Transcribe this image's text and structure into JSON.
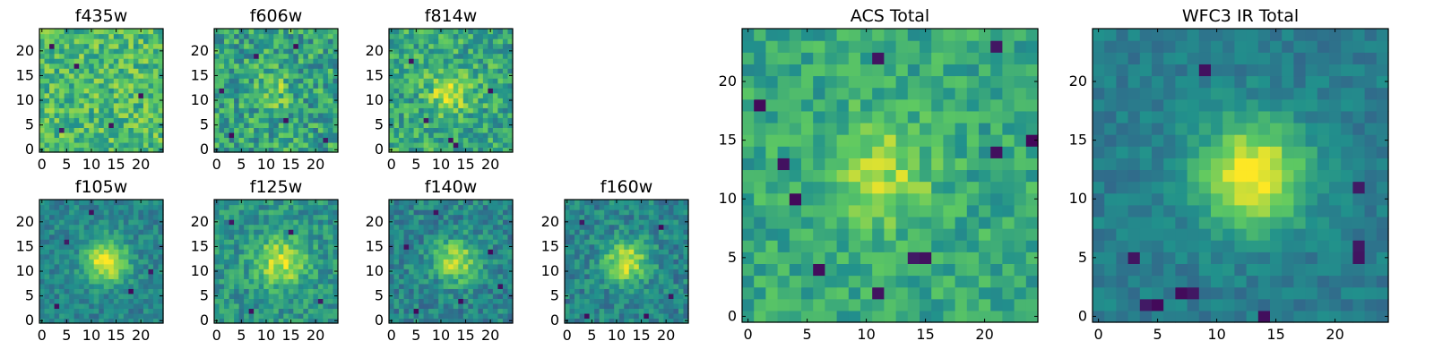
{
  "figure": {
    "colormap": "viridis",
    "colors": {
      "low": "#440154",
      "mid": "#21918c",
      "high": "#fde725",
      "frame": "#000000"
    }
  },
  "chart_data": [
    {
      "type": "heatmap",
      "id": "f435w",
      "title": "f435w",
      "grid_size": 25,
      "xticks": [
        "0",
        "5",
        "10",
        "15",
        "20"
      ],
      "yticks": [
        "0",
        "5",
        "10",
        "15",
        "20"
      ],
      "xlim": [
        0,
        25
      ],
      "ylim": [
        0,
        25
      ],
      "source": {
        "amplitude": 0.0,
        "center": [
          12,
          12
        ],
        "sigma": 3.0
      },
      "background": {
        "level": 0.68,
        "noise": 0.2
      },
      "dark_pixels": [
        [
          4,
          4
        ],
        [
          14,
          5
        ],
        [
          20,
          11
        ],
        [
          7,
          17
        ],
        [
          2,
          21
        ]
      ]
    },
    {
      "type": "heatmap",
      "id": "f606w",
      "title": "f606w",
      "grid_size": 25,
      "xticks": [
        "0",
        "5",
        "10",
        "15",
        "20"
      ],
      "yticks": [
        "0",
        "5",
        "10",
        "15",
        "20"
      ],
      "xlim": [
        0,
        25
      ],
      "ylim": [
        0,
        25
      ],
      "source": {
        "amplitude": 0.22,
        "center": [
          11,
          12
        ],
        "sigma": 2.5
      },
      "background": {
        "level": 0.58,
        "noise": 0.22
      },
      "dark_pixels": [
        [
          3,
          3
        ],
        [
          14,
          6
        ],
        [
          22,
          2
        ],
        [
          8,
          19
        ],
        [
          16,
          21
        ],
        [
          1,
          12
        ]
      ]
    },
    {
      "type": "heatmap",
      "id": "f814w",
      "title": "f814w",
      "grid_size": 25,
      "xticks": [
        "0",
        "5",
        "10",
        "15",
        "20"
      ],
      "yticks": [
        "0",
        "5",
        "10",
        "15",
        "20"
      ],
      "xlim": [
        0,
        25
      ],
      "ylim": [
        0,
        25
      ],
      "source": {
        "amplitude": 0.3,
        "center": [
          12,
          12
        ],
        "sigma": 3.0
      },
      "background": {
        "level": 0.6,
        "noise": 0.2
      },
      "dark_pixels": [
        [
          12,
          2
        ],
        [
          13,
          1
        ],
        [
          4,
          18
        ],
        [
          20,
          12
        ],
        [
          7,
          6
        ]
      ]
    },
    {
      "type": "heatmap",
      "id": "f105w",
      "title": "f105w",
      "grid_size": 25,
      "xticks": [
        "0",
        "5",
        "10",
        "15",
        "20"
      ],
      "yticks": [
        "0",
        "5",
        "10",
        "15",
        "20"
      ],
      "xlim": [
        0,
        25
      ],
      "ylim": [
        0,
        25
      ],
      "source": {
        "amplitude": 0.55,
        "center": [
          13,
          12
        ],
        "sigma": 3.0
      },
      "background": {
        "level": 0.45,
        "noise": 0.12
      },
      "dark_pixels": [
        [
          10,
          22
        ],
        [
          3,
          3
        ],
        [
          18,
          6
        ],
        [
          22,
          10
        ],
        [
          5,
          16
        ]
      ]
    },
    {
      "type": "heatmap",
      "id": "f125w",
      "title": "f125w",
      "grid_size": 25,
      "xticks": [
        "0",
        "5",
        "10",
        "15",
        "20"
      ],
      "yticks": [
        "0",
        "5",
        "10",
        "15",
        "20"
      ],
      "xlim": [
        0,
        25
      ],
      "ylim": [
        0,
        25
      ],
      "source": {
        "amplitude": 0.4,
        "center": [
          13,
          12
        ],
        "sigma": 3.5
      },
      "background": {
        "level": 0.52,
        "noise": 0.15
      },
      "dark_pixels": [
        [
          21,
          4
        ],
        [
          3,
          20
        ],
        [
          15,
          18
        ],
        [
          7,
          2
        ]
      ]
    },
    {
      "type": "heatmap",
      "id": "f140w",
      "title": "f140w",
      "grid_size": 25,
      "xticks": [
        "0",
        "5",
        "10",
        "15",
        "20"
      ],
      "yticks": [
        "0",
        "5",
        "10",
        "15",
        "20"
      ],
      "xlim": [
        0,
        25
      ],
      "ylim": [
        0,
        25
      ],
      "source": {
        "amplitude": 0.45,
        "center": [
          13,
          12
        ],
        "sigma": 3.0
      },
      "background": {
        "level": 0.45,
        "noise": 0.15
      },
      "dark_pixels": [
        [
          3,
          15
        ],
        [
          20,
          14
        ],
        [
          5,
          2
        ],
        [
          14,
          4
        ],
        [
          22,
          7
        ],
        [
          9,
          22
        ]
      ]
    },
    {
      "type": "heatmap",
      "id": "f160w",
      "title": "f160w",
      "grid_size": 25,
      "xticks": [
        "0",
        "5",
        "10",
        "15",
        "20"
      ],
      "yticks": [
        "0",
        "5",
        "10",
        "15",
        "20"
      ],
      "xlim": [
        0,
        25
      ],
      "ylim": [
        0,
        25
      ],
      "source": {
        "amplitude": 0.5,
        "center": [
          12,
          12
        ],
        "sigma": 3.0
      },
      "background": {
        "level": 0.45,
        "noise": 0.14
      },
      "dark_pixels": [
        [
          4,
          1
        ],
        [
          16,
          1
        ],
        [
          21,
          5
        ],
        [
          3,
          20
        ],
        [
          19,
          19
        ]
      ]
    },
    {
      "type": "heatmap",
      "id": "acs_total",
      "title": "ACS Total",
      "grid_size": 25,
      "xticks": [
        "0",
        "5",
        "10",
        "15",
        "20"
      ],
      "yticks": [
        "0",
        "5",
        "10",
        "15",
        "20"
      ],
      "xlim": [
        0,
        25
      ],
      "ylim": [
        0,
        25
      ],
      "source": {
        "amplitude": 0.28,
        "center": [
          11,
          12
        ],
        "sigma": 3.2
      },
      "background": {
        "level": 0.6,
        "noise": 0.14
      },
      "dark_pixels": [
        [
          3,
          13
        ],
        [
          4,
          10
        ],
        [
          14,
          5
        ],
        [
          15,
          5
        ],
        [
          6,
          4
        ],
        [
          11,
          2
        ],
        [
          21,
          14
        ],
        [
          24,
          15
        ],
        [
          11,
          22
        ],
        [
          21,
          23
        ],
        [
          1,
          18
        ]
      ]
    },
    {
      "type": "heatmap",
      "id": "wfc3_ir_total",
      "title": "WFC3 IR Total",
      "grid_size": 25,
      "xticks": [
        "0",
        "5",
        "10",
        "15",
        "20"
      ],
      "yticks": [
        "0",
        "5",
        "10",
        "15",
        "20"
      ],
      "xlim": [
        0,
        25
      ],
      "ylim": [
        0,
        25
      ],
      "source": {
        "amplitude": 0.6,
        "center": [
          13,
          12
        ],
        "sigma": 3.2
      },
      "background": {
        "level": 0.42,
        "noise": 0.08
      },
      "dark_pixels": [
        [
          4,
          1
        ],
        [
          5,
          1
        ],
        [
          7,
          2
        ],
        [
          8,
          2
        ],
        [
          22,
          5
        ],
        [
          22,
          6
        ],
        [
          22,
          11
        ],
        [
          9,
          21
        ],
        [
          14,
          0
        ],
        [
          3,
          5
        ]
      ]
    }
  ]
}
